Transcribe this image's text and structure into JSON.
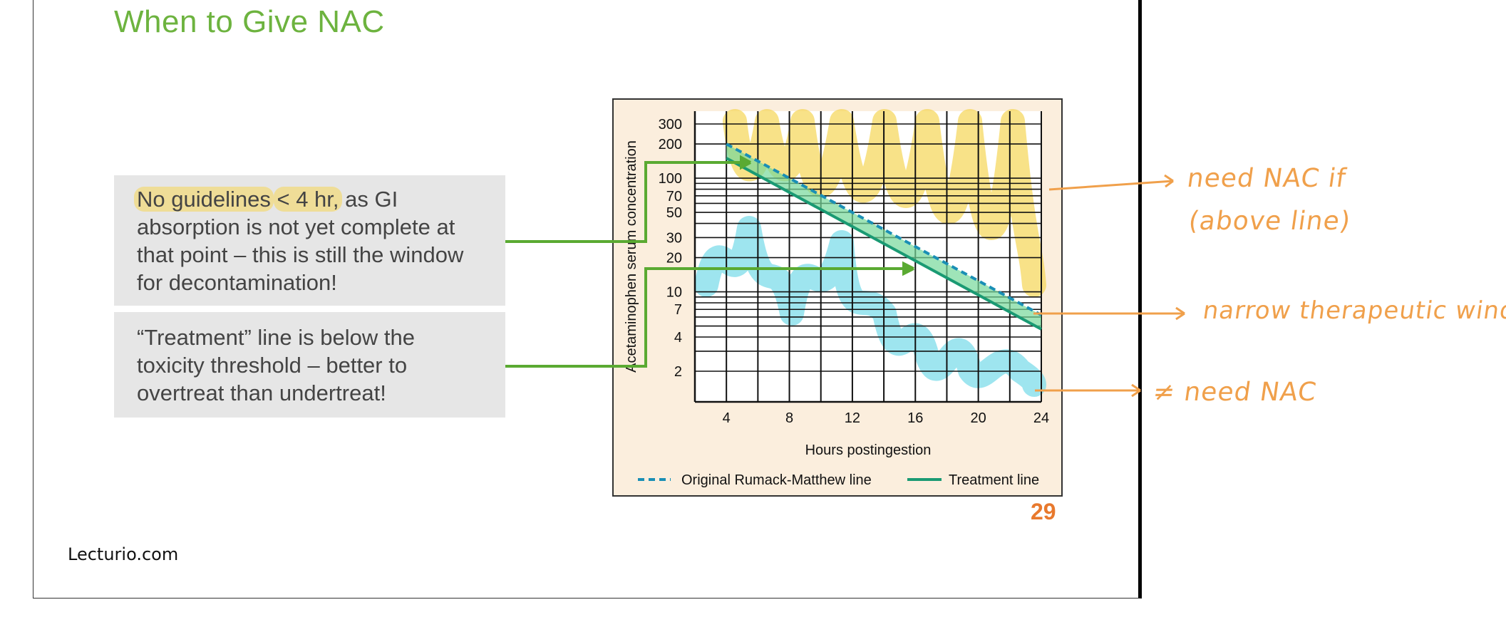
{
  "slide": {
    "title": "When to Give NAC",
    "footer_brand": "Lecturio.com",
    "page_number": "29",
    "box1": {
      "hl_1": "No guidelines",
      "text_1": " ",
      "hl_2": "< 4 hr,",
      "text_2": " as GI absorption is not yet complete at that point – this is still the window for decontamination!"
    },
    "box2": {
      "text": "“Treatment” line is below the toxicity threshold – better to overtreat than undertreat!"
    }
  },
  "annotations": {
    "above_line_1": "need NAC if",
    "above_line_2": "(above line)",
    "between_lines": "narrow therapeutic window",
    "below_line": "≠ need NAC"
  },
  "colors": {
    "title_green": "#6db33f",
    "arrow_green": "#5aaa32",
    "annotation_orange": "#f0a04b",
    "page_number_orange": "#e8792d",
    "rumack_line": "#1a8fb5",
    "treatment_line": "#1a9a73",
    "highlight_yellow": "#f5d655",
    "highlight_cyan": "#7ddcea"
  },
  "chart_data": {
    "type": "line",
    "xlabel": "Hours postingestion",
    "ylabel": "Acetaminophen serum concentration",
    "x_ticks": [
      4,
      8,
      12,
      16,
      20,
      24
    ],
    "y_ticks": [
      2,
      4,
      7,
      10,
      20,
      30,
      50,
      70,
      100,
      200,
      300
    ],
    "xlim": [
      2,
      24
    ],
    "y_scale": "log",
    "grid": true,
    "legend_placement": "bottom",
    "series": [
      {
        "name": "Original Rumack-Matthew line",
        "style": "dashed",
        "x": [
          4,
          24
        ],
        "y": [
          200,
          6.25
        ]
      },
      {
        "name": "Treatment line",
        "style": "solid",
        "x": [
          4,
          24
        ],
        "y": [
          150,
          4.69
        ]
      }
    ]
  }
}
